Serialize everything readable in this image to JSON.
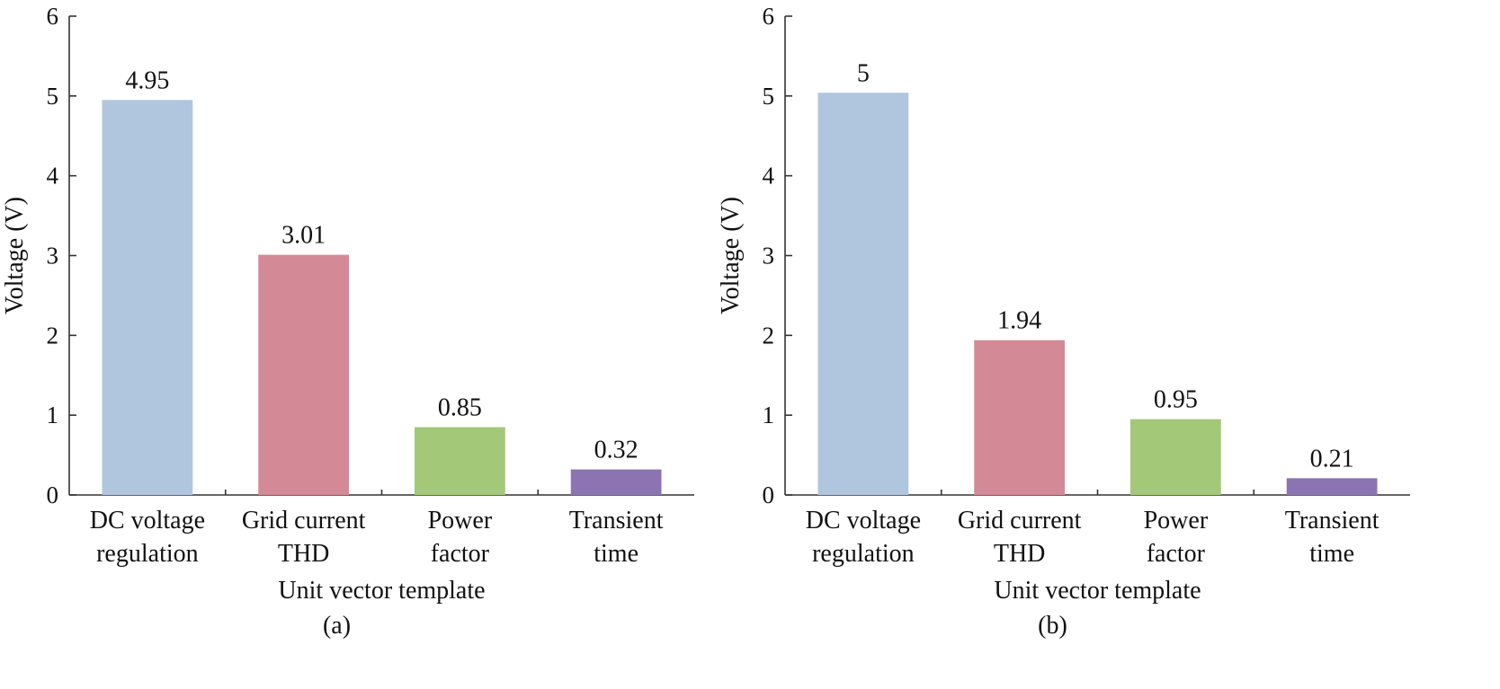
{
  "chart_data": [
    {
      "panel": "a",
      "type": "bar",
      "caption": "(a)",
      "categories": [
        [
          "DC voltage",
          "regulation"
        ],
        [
          "Grid current",
          "THD"
        ],
        [
          "Power",
          "factor"
        ],
        [
          "Transient",
          "time"
        ]
      ],
      "values": [
        4.95,
        3.01,
        0.85,
        0.32
      ],
      "value_labels": [
        "4.95",
        "3.01",
        "0.85",
        "0.32"
      ],
      "colors": [
        "#b0c6df",
        "#d48a96",
        "#a3c878",
        "#8c74b2"
      ],
      "xlabel": "Unit vector template",
      "ylabel": "Voltage (V)",
      "ylim": [
        0,
        6
      ],
      "yticks": [
        0,
        1,
        2,
        3,
        4,
        5,
        6
      ],
      "grid": false,
      "legend": "none"
    },
    {
      "panel": "b",
      "type": "bar",
      "caption": "(b)",
      "categories": [
        [
          "DC voltage",
          "regulation"
        ],
        [
          "Grid current",
          "THD"
        ],
        [
          "Power",
          "factor"
        ],
        [
          "Transient",
          "time"
        ]
      ],
      "values": [
        5.04,
        1.94,
        0.95,
        0.21
      ],
      "value_labels": [
        "5",
        "1.94",
        "0.95",
        "0.21"
      ],
      "colors": [
        "#b0c6df",
        "#d48a96",
        "#a3c878",
        "#8c74b2"
      ],
      "xlabel": "Unit vector template",
      "ylabel": "Voltage (V)",
      "ylim": [
        0,
        6
      ],
      "yticks": [
        0,
        1,
        2,
        3,
        4,
        5,
        6
      ],
      "grid": false,
      "legend": "none"
    }
  ]
}
